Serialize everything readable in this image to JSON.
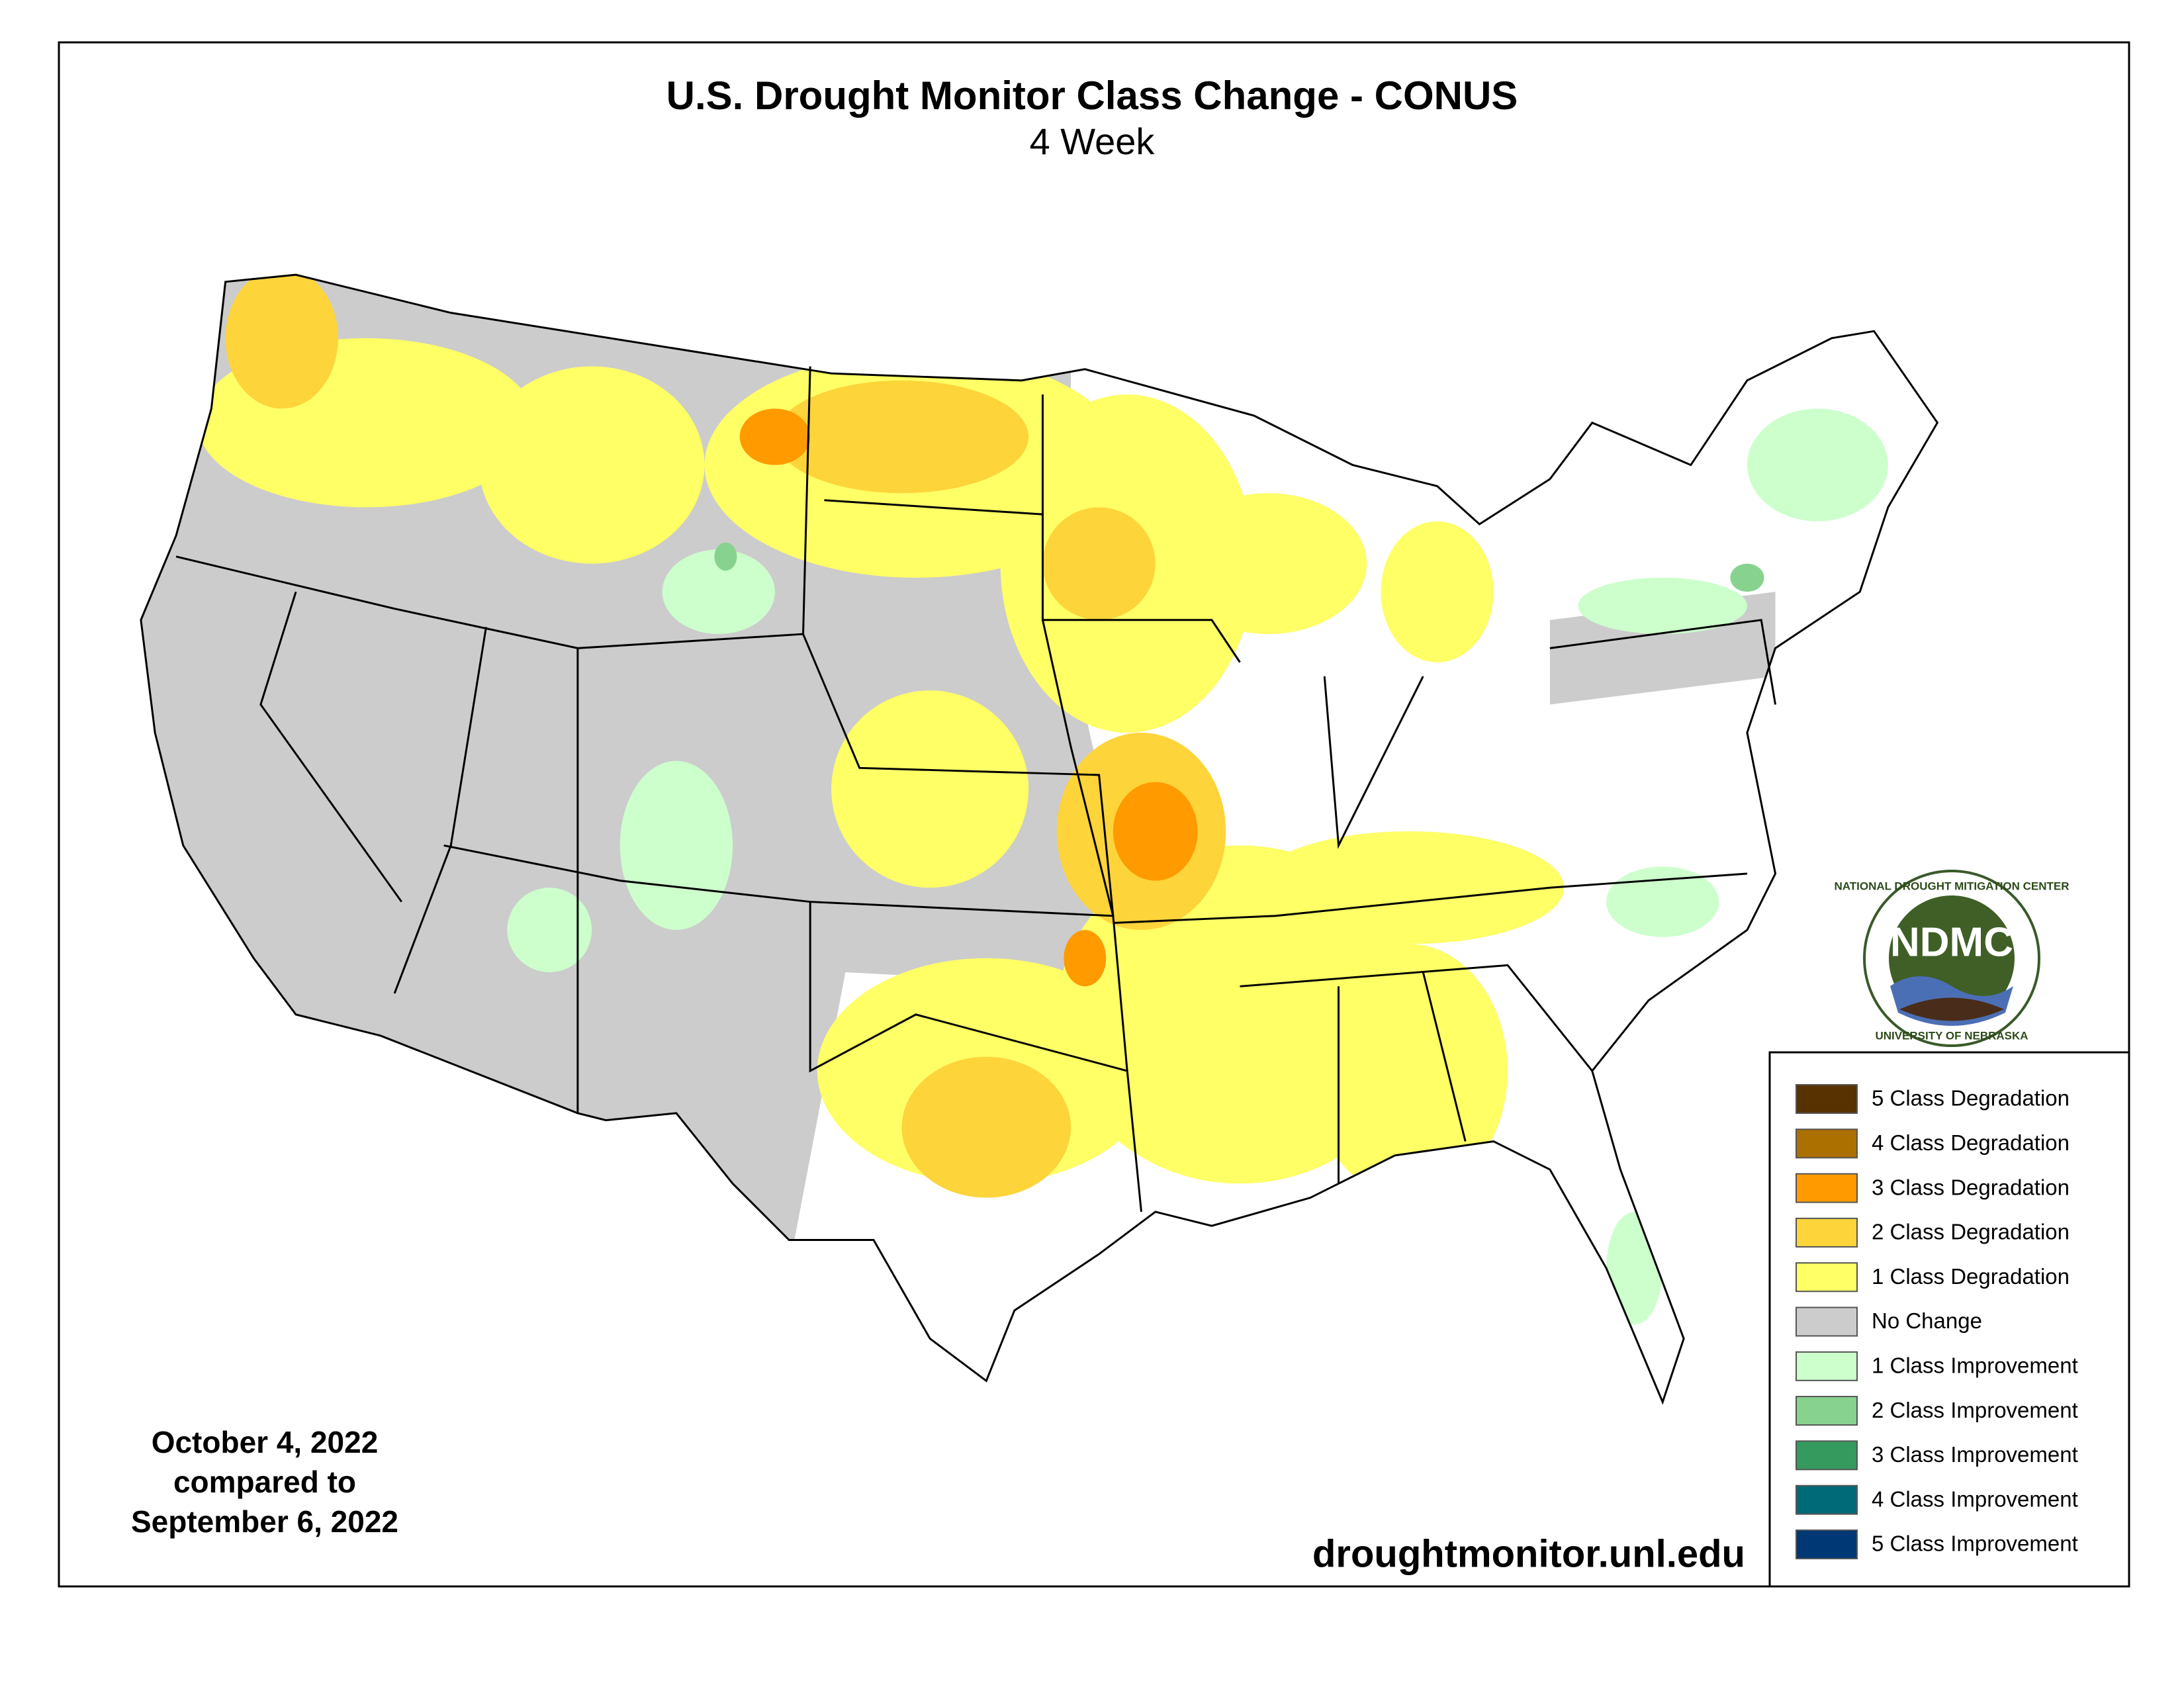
{
  "header": {
    "title": "U.S. Drought Monitor Class Change - CONUS",
    "subtitle": "4 Week"
  },
  "dates": [
    "October 4, 2022",
    "compared to",
    "September 6, 2022"
  ],
  "source": "droughtmonitor.unl.edu",
  "logo": {
    "text": "NDMC",
    "top_text": "NATIONAL DROUGHT MITIGATION CENTER",
    "bottom_text": "UNIVERSITY OF NEBRASKA"
  },
  "legend": [
    {
      "label": "5 Class Degradation",
      "color": "#583200"
    },
    {
      "label": "4 Class Degradation",
      "color": "#ac7000"
    },
    {
      "label": "3 Class Degradation",
      "color": "#ff9a00"
    },
    {
      "label": "2 Class Degradation",
      "color": "#fdd43a"
    },
    {
      "label": "1 Class Degradation",
      "color": "#ffff66"
    },
    {
      "label": "No Change",
      "color": "#cccccc"
    },
    {
      "label": "1 Class Improvement",
      "color": "#ccffcc"
    },
    {
      "label": "2 Class Improvement",
      "color": "#88d28f"
    },
    {
      "label": "3 Class Improvement",
      "color": "#349a5e"
    },
    {
      "label": "4 Class Improvement",
      "color": "#006a78"
    },
    {
      "label": "5 Class Improvement",
      "color": "#003875"
    }
  ]
}
